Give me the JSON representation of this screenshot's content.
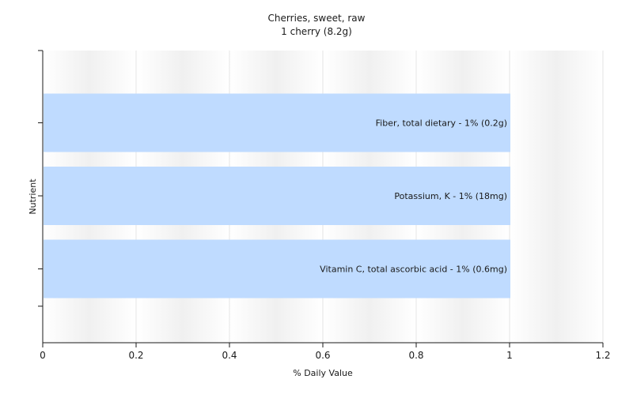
{
  "chart_data": {
    "type": "bar",
    "orientation": "horizontal",
    "title": "Cherries, sweet, raw",
    "subtitle": "1 cherry (8.2g)",
    "xlabel": "% Daily Value",
    "ylabel": "Nutrient",
    "xlim": [
      0,
      1.2
    ],
    "xticks": [
      "0",
      "0.2",
      "0.4",
      "0.6",
      "0.8",
      "1",
      "1.2"
    ],
    "xtick_values": [
      0,
      0.2,
      0.4,
      0.6,
      0.8,
      1.0,
      1.2
    ],
    "grid": true,
    "categories": [
      "Fiber, total dietary - 1% (0.2g)",
      "Potassium, K - 1% (18mg)",
      "Vitamin C, total ascorbic acid - 1% (0.6mg)"
    ],
    "values": [
      1,
      1,
      1
    ],
    "colors": {
      "bar": "#bfdbff",
      "plot_background": "#f2f2f2",
      "grid": "#ffffff",
      "axis": "#1a1a1a"
    }
  }
}
